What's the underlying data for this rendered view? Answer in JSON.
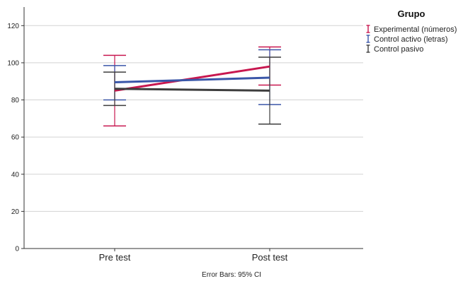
{
  "chart_data": {
    "type": "line",
    "categories": [
      "Pre test",
      "Post test"
    ],
    "ylim": [
      0,
      130
    ],
    "yticks": [
      0,
      20,
      40,
      60,
      80,
      100,
      120
    ],
    "grid": true,
    "legend_title": "Grupo",
    "legend_position": "top-right",
    "footnote": "Error Bars: 95% CI",
    "series": [
      {
        "name": "Experimental (números)",
        "color": "#c8174f",
        "values": [
          85.0,
          98.0
        ],
        "ci_low": [
          66.0,
          88.0
        ],
        "ci_high": [
          104.0,
          108.5
        ]
      },
      {
        "name": "Control activo (letras)",
        "color": "#3a56a8",
        "values": [
          89.5,
          92.0
        ],
        "ci_low": [
          80.0,
          77.5
        ],
        "ci_high": [
          98.5,
          107.0
        ]
      },
      {
        "name": "Control pasivo",
        "color": "#3d3d3d",
        "values": [
          86.0,
          85.0
        ],
        "ci_low": [
          77.0,
          67.0
        ],
        "ci_high": [
          95.0,
          103.0
        ]
      }
    ]
  }
}
